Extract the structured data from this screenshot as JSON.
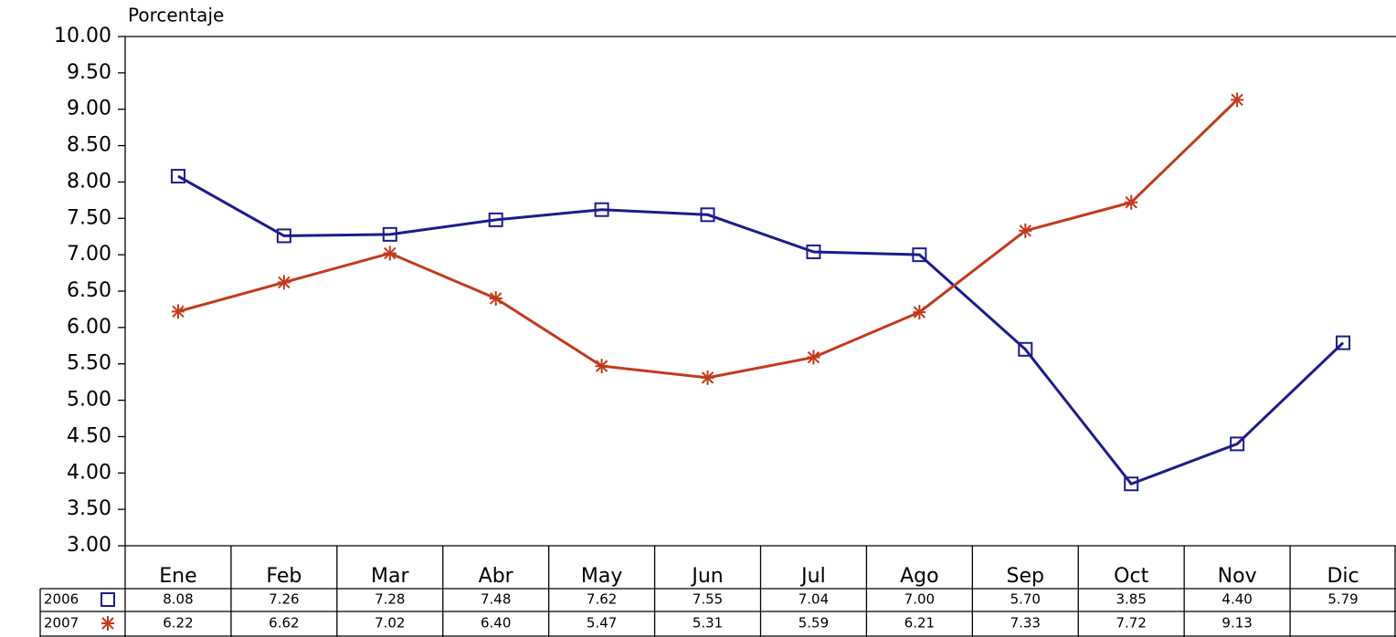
{
  "chart_data": {
    "type": "line",
    "y_label": "Porcentaje",
    "categories": [
      "Ene",
      "Feb",
      "Mar",
      "Abr",
      "May",
      "Jun",
      "Jul",
      "Ago",
      "Sep",
      "Oct",
      "Nov",
      "Dic"
    ],
    "series": [
      {
        "name": "2006",
        "color": "#1c1c8a",
        "marker": "square",
        "values": [
          8.08,
          7.26,
          7.28,
          7.48,
          7.62,
          7.55,
          7.04,
          7.0,
          5.7,
          3.85,
          4.4,
          5.79
        ],
        "value_labels": [
          "8.08",
          "7.26",
          "7.28",
          "7.48",
          "7.62",
          "7.55",
          "7.04",
          "7.00",
          "5.70",
          "3.85",
          "4.40",
          "5.79"
        ]
      },
      {
        "name": "2007",
        "color": "#c33a1c",
        "marker": "asterisk",
        "values": [
          6.22,
          6.62,
          7.02,
          6.4,
          5.47,
          5.31,
          5.59,
          6.21,
          7.33,
          7.72,
          9.13,
          null
        ],
        "value_labels": [
          "6.22",
          "6.62",
          "7.02",
          "6.40",
          "5.47",
          "5.31",
          "5.59",
          "6.21",
          "7.33",
          "7.72",
          "9.13",
          null
        ]
      }
    ],
    "ylim": [
      3,
      10
    ],
    "yticks": [
      {
        "value": 3,
        "label": "3.00"
      },
      {
        "value": 3.5,
        "label": "3.50"
      },
      {
        "value": 4,
        "label": "4.00"
      },
      {
        "value": 4.5,
        "label": "4.50"
      },
      {
        "value": 5,
        "label": "5.00"
      },
      {
        "value": 5.5,
        "label": "5.50"
      },
      {
        "value": 6,
        "label": "6.00"
      },
      {
        "value": 6.5,
        "label": "6.50"
      },
      {
        "value": 7,
        "label": "7.00"
      },
      {
        "value": 7.5,
        "label": "7.50"
      },
      {
        "value": 8,
        "label": "8.00"
      },
      {
        "value": 8.5,
        "label": "8.50"
      },
      {
        "value": 9,
        "label": "9.00"
      },
      {
        "value": 9.5,
        "label": "9.50"
      },
      {
        "value": 10,
        "label": "10.00"
      }
    ],
    "grid": false
  }
}
